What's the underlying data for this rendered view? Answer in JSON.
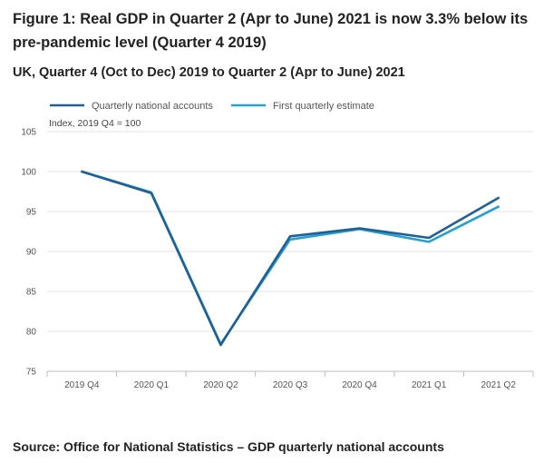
{
  "figure": {
    "title": "Figure 1: Real GDP in Quarter 2 (Apr to June) 2021 is now 3.3% below its pre-pandemic level (Quarter 4 2019)",
    "subtitle": "UK, Quarter 4 (Oct to Dec) 2019 to Quarter 2 (Apr to June) 2021",
    "source": "Source: Office for National Statistics – GDP quarterly national accounts"
  },
  "chart_data": {
    "type": "line",
    "title": "",
    "xlabel": "",
    "ylabel": "Index, 2019 Q4 = 100",
    "categories": [
      "2019 Q4",
      "2020 Q1",
      "2020 Q2",
      "2020 Q3",
      "2020 Q4",
      "2021 Q1",
      "2021 Q2"
    ],
    "ylim": [
      75,
      105
    ],
    "yticks": [
      75,
      80,
      85,
      90,
      95,
      100,
      105
    ],
    "grid": true,
    "legend_position": "top-left",
    "series": [
      {
        "name": "Quarterly national accounts",
        "color": "#206095",
        "values": [
          100,
          97.3,
          78.3,
          91.9,
          92.9,
          91.7,
          96.7
        ]
      },
      {
        "name": "First quarterly estimate",
        "color": "#27a0cc",
        "values": [
          100,
          97.4,
          78.4,
          91.5,
          92.8,
          91.2,
          95.6
        ]
      }
    ]
  }
}
